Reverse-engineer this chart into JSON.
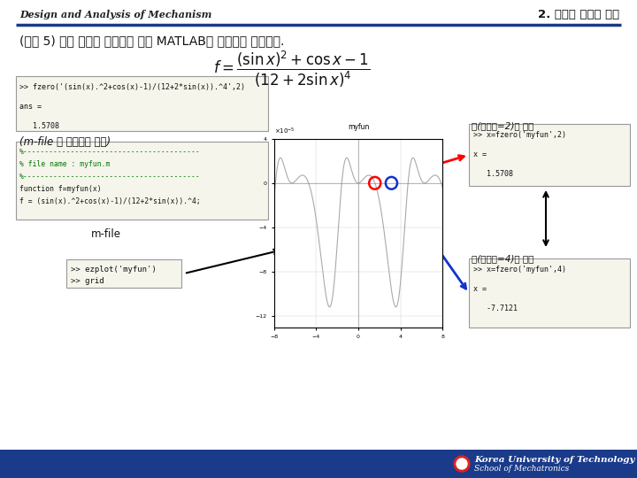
{
  "title_left": "Design and Analysis of Mechanism",
  "title_right": "2. 비선형 방정식 해법",
  "header_line_color": "#1a3a8a",
  "footer_line_color": "#1a3a8a",
  "bg_color": "#ffffff",
  "example_text": "(예제 5) 다음 비선형 방정식의 해를 MATLAB을 이용하여 구하시오.",
  "matlab_box1_lines": [
    ">> fzero('(sin(x).^2+cos(x)-1)/(12+2*sin(x)).^4',2)",
    "",
    "ans =",
    "",
    "   1.5708"
  ],
  "mfile_label": "(m-file 을 이용하는 방법)",
  "mfile_code_lines": [
    "%-----------------------------------------",
    "% file name : myfun.m",
    "%-----------------------------------------",
    "function f=myfun(x)",
    "f = (sin(x).^2+cos(x)-1)/(12+2*sin(x)).^4;"
  ],
  "mfile_text": "m-file",
  "cmd_box_lines": [
    ">> ezplot('myfun')",
    ">> grid"
  ],
  "right_label1": "해(초기치=2)인 경우",
  "right_box1_lines": [
    ">> x=fzero('myfun',2)",
    "",
    "x =",
    "",
    "   1.5708"
  ],
  "right_label2": "해(초기치=4)인 경우",
  "right_box2_lines": [
    ">> x=fzero('myfun',4)",
    "",
    "x =",
    "",
    "   -7.7121"
  ],
  "box_bg": "#f5f5ec",
  "footer_text1": "Korea University of Technology and Education",
  "footer_text2": "School of Mechatronics"
}
